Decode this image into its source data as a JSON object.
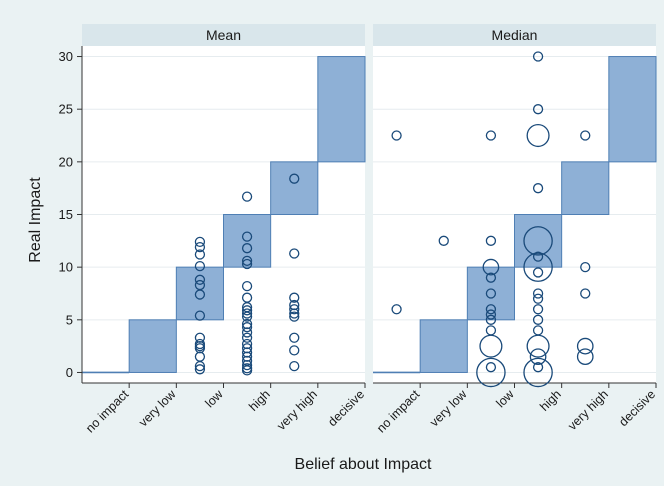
{
  "chart_data": {
    "type": "scatter",
    "title": "",
    "xlabel": "Belief about Impact",
    "ylabel": "Real Impact",
    "ylim": [
      -1,
      31
    ],
    "yticks": [
      0,
      5,
      10,
      15,
      20,
      25,
      30
    ],
    "categories": [
      "no impact",
      "very low",
      "low",
      "high",
      "very high",
      "decisive"
    ],
    "grid": true,
    "colors": {
      "background": "#eaf2f3",
      "panel": "#ffffff",
      "panel_header": "#d9e6eb",
      "rect_fill": "#8eb0d6",
      "rect_stroke": "#4f7fb4",
      "marker": "#1a4a7a",
      "grid": "#e6ecef"
    },
    "reference_bands": [
      {
        "category": "no impact",
        "low": 0,
        "high": 0
      },
      {
        "category": "very low",
        "low": 0,
        "high": 5
      },
      {
        "category": "low",
        "low": 5,
        "high": 10
      },
      {
        "category": "high",
        "low": 10,
        "high": 15
      },
      {
        "category": "very high",
        "low": 15,
        "high": 20
      },
      {
        "category": "decisive",
        "low": 20,
        "high": 30
      }
    ],
    "panels": [
      {
        "title": "Mean",
        "points": [
          {
            "x": "low",
            "y": 12.4,
            "size": 1
          },
          {
            "x": "low",
            "y": 11.9,
            "size": 1
          },
          {
            "x": "low",
            "y": 11.2,
            "size": 1
          },
          {
            "x": "low",
            "y": 10.1,
            "size": 1
          },
          {
            "x": "low",
            "y": 8.8,
            "size": 1
          },
          {
            "x": "low",
            "y": 8.3,
            "size": 1
          },
          {
            "x": "low",
            "y": 7.4,
            "size": 1
          },
          {
            "x": "low",
            "y": 5.4,
            "size": 1
          },
          {
            "x": "low",
            "y": 3.3,
            "size": 1
          },
          {
            "x": "low",
            "y": 2.7,
            "size": 1
          },
          {
            "x": "low",
            "y": 2.5,
            "size": 1
          },
          {
            "x": "low",
            "y": 2.3,
            "size": 1
          },
          {
            "x": "low",
            "y": 1.5,
            "size": 1
          },
          {
            "x": "low",
            "y": 0.6,
            "size": 1
          },
          {
            "x": "low",
            "y": 0.3,
            "size": 1
          },
          {
            "x": "high",
            "y": 16.7,
            "size": 1
          },
          {
            "x": "high",
            "y": 12.9,
            "size": 1
          },
          {
            "x": "high",
            "y": 11.8,
            "size": 1
          },
          {
            "x": "high",
            "y": 10.6,
            "size": 1
          },
          {
            "x": "high",
            "y": 10.3,
            "size": 1
          },
          {
            "x": "high",
            "y": 8.2,
            "size": 1
          },
          {
            "x": "high",
            "y": 7.1,
            "size": 1
          },
          {
            "x": "high",
            "y": 6.2,
            "size": 1
          },
          {
            "x": "high",
            "y": 5.9,
            "size": 1
          },
          {
            "x": "high",
            "y": 5.6,
            "size": 1
          },
          {
            "x": "high",
            "y": 5.3,
            "size": 1
          },
          {
            "x": "high",
            "y": 4.6,
            "size": 1
          },
          {
            "x": "high",
            "y": 4.3,
            "size": 1
          },
          {
            "x": "high",
            "y": 3.8,
            "size": 1
          },
          {
            "x": "high",
            "y": 3.3,
            "size": 1
          },
          {
            "x": "high",
            "y": 2.7,
            "size": 1
          },
          {
            "x": "high",
            "y": 2.3,
            "size": 1
          },
          {
            "x": "high",
            "y": 1.9,
            "size": 1
          },
          {
            "x": "high",
            "y": 1.5,
            "size": 1
          },
          {
            "x": "high",
            "y": 1.1,
            "size": 1
          },
          {
            "x": "high",
            "y": 0.7,
            "size": 1
          },
          {
            "x": "high",
            "y": 0.4,
            "size": 1
          },
          {
            "x": "high",
            "y": 0.2,
            "size": 1
          },
          {
            "x": "very high",
            "y": 18.4,
            "size": 1
          },
          {
            "x": "very high",
            "y": 11.3,
            "size": 1
          },
          {
            "x": "very high",
            "y": 7.1,
            "size": 1
          },
          {
            "x": "very high",
            "y": 6.4,
            "size": 1
          },
          {
            "x": "very high",
            "y": 6.0,
            "size": 1
          },
          {
            "x": "very high",
            "y": 5.6,
            "size": 1
          },
          {
            "x": "very high",
            "y": 5.3,
            "size": 1
          },
          {
            "x": "very high",
            "y": 3.3,
            "size": 1
          },
          {
            "x": "very high",
            "y": 2.1,
            "size": 1
          },
          {
            "x": "very high",
            "y": 0.6,
            "size": 1
          }
        ]
      },
      {
        "title": "Median",
        "points": [
          {
            "x": "no impact",
            "y": 22.5,
            "size": 1
          },
          {
            "x": "no impact",
            "y": 6.0,
            "size": 1
          },
          {
            "x": "very low",
            "y": 12.5,
            "size": 1
          },
          {
            "x": "low",
            "y": 22.5,
            "size": 1
          },
          {
            "x": "low",
            "y": 12.5,
            "size": 1
          },
          {
            "x": "low",
            "y": 10.0,
            "size": 2
          },
          {
            "x": "low",
            "y": 9.0,
            "size": 1
          },
          {
            "x": "low",
            "y": 7.5,
            "size": 1
          },
          {
            "x": "low",
            "y": 6.0,
            "size": 1
          },
          {
            "x": "low",
            "y": 5.5,
            "size": 1
          },
          {
            "x": "low",
            "y": 5.0,
            "size": 1
          },
          {
            "x": "low",
            "y": 4.0,
            "size": 1
          },
          {
            "x": "low",
            "y": 2.5,
            "size": 3
          },
          {
            "x": "low",
            "y": 0.5,
            "size": 1
          },
          {
            "x": "low",
            "y": 0.0,
            "size": 4
          },
          {
            "x": "high",
            "y": 30.0,
            "size": 1
          },
          {
            "x": "high",
            "y": 25.0,
            "size": 1
          },
          {
            "x": "high",
            "y": 22.5,
            "size": 3
          },
          {
            "x": "high",
            "y": 17.5,
            "size": 1
          },
          {
            "x": "high",
            "y": 12.5,
            "size": 4
          },
          {
            "x": "high",
            "y": 11.0,
            "size": 1
          },
          {
            "x": "high",
            "y": 10.0,
            "size": 4
          },
          {
            "x": "high",
            "y": 9.5,
            "size": 1
          },
          {
            "x": "high",
            "y": 7.5,
            "size": 1
          },
          {
            "x": "high",
            "y": 7.0,
            "size": 1
          },
          {
            "x": "high",
            "y": 6.0,
            "size": 1
          },
          {
            "x": "high",
            "y": 5.0,
            "size": 1
          },
          {
            "x": "high",
            "y": 4.0,
            "size": 1
          },
          {
            "x": "high",
            "y": 2.5,
            "size": 3
          },
          {
            "x": "high",
            "y": 1.5,
            "size": 2
          },
          {
            "x": "high",
            "y": 0.5,
            "size": 1
          },
          {
            "x": "high",
            "y": 0.0,
            "size": 4
          },
          {
            "x": "very high",
            "y": 22.5,
            "size": 1
          },
          {
            "x": "very high",
            "y": 10.0,
            "size": 1
          },
          {
            "x": "very high",
            "y": 7.5,
            "size": 1
          },
          {
            "x": "very high",
            "y": 2.5,
            "size": 2
          },
          {
            "x": "very high",
            "y": 1.5,
            "size": 2
          }
        ]
      }
    ]
  }
}
